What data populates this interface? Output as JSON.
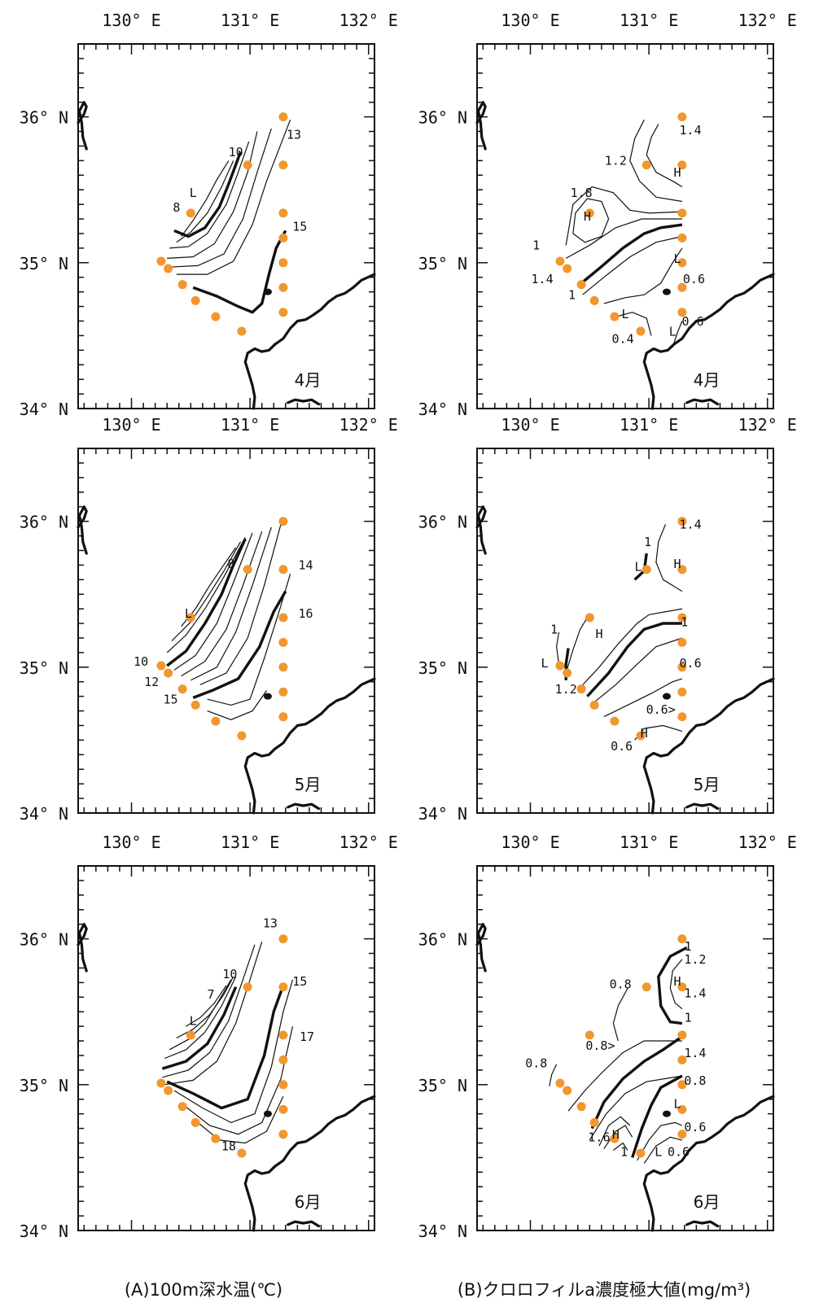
{
  "figure": {
    "lon_labels": [
      "130° E",
      "131° E",
      "132° E"
    ],
    "lat_labels": [
      "36° N",
      "35° N",
      "34° N"
    ],
    "captions": {
      "A": "(A)100m深水温(℃)",
      "B": "(B)クロロフィルa濃度極大値(mg/m³)"
    },
    "colors": {
      "station": "#f2962f",
      "line": "#111111",
      "background": "#ffffff"
    }
  },
  "panels": [
    {
      "id": "A-4",
      "column": "A",
      "row": 0,
      "month": "4月",
      "labels": [
        {
          "text": "10",
          "lon": 130.88,
          "lat": 35.73
        },
        {
          "text": "13",
          "lon": 131.37,
          "lat": 35.85
        },
        {
          "text": "8",
          "lon": 130.38,
          "lat": 35.35
        },
        {
          "text": "L",
          "lon": 130.52,
          "lat": 35.45
        },
        {
          "text": "15",
          "lon": 131.42,
          "lat": 35.22
        }
      ]
    },
    {
      "id": "A-5",
      "column": "A",
      "row": 1,
      "month": "5月",
      "labels": [
        {
          "text": "8",
          "lon": 130.84,
          "lat": 35.68
        },
        {
          "text": "14",
          "lon": 131.47,
          "lat": 35.67
        },
        {
          "text": "L",
          "lon": 130.48,
          "lat": 35.34
        },
        {
          "text": "16",
          "lon": 131.47,
          "lat": 35.34
        },
        {
          "text": "10",
          "lon": 130.08,
          "lat": 35.01
        },
        {
          "text": "12",
          "lon": 130.17,
          "lat": 34.87
        },
        {
          "text": "15",
          "lon": 130.33,
          "lat": 34.75
        }
      ]
    },
    {
      "id": "A-6",
      "column": "A",
      "row": 2,
      "month": "6月",
      "labels": [
        {
          "text": "13",
          "lon": 131.17,
          "lat": 36.08
        },
        {
          "text": "10",
          "lon": 130.83,
          "lat": 35.73
        },
        {
          "text": "15",
          "lon": 131.42,
          "lat": 35.68
        },
        {
          "text": "7",
          "lon": 130.67,
          "lat": 35.59
        },
        {
          "text": "L",
          "lon": 130.52,
          "lat": 35.41
        },
        {
          "text": "17",
          "lon": 131.48,
          "lat": 35.3
        },
        {
          "text": "18",
          "lon": 130.82,
          "lat": 34.55
        }
      ]
    },
    {
      "id": "B-4",
      "column": "B",
      "row": 0,
      "month": "4月",
      "labels": [
        {
          "text": "1.4",
          "lon": 131.35,
          "lat": 35.88
        },
        {
          "text": "1.2",
          "lon": 130.72,
          "lat": 35.67
        },
        {
          "text": "H",
          "lon": 131.24,
          "lat": 35.59
        },
        {
          "text": "1.8",
          "lon": 130.43,
          "lat": 35.45
        },
        {
          "text": "H",
          "lon": 130.48,
          "lat": 35.29
        },
        {
          "text": "1",
          "lon": 130.05,
          "lat": 35.09
        },
        {
          "text": "L",
          "lon": 131.24,
          "lat": 35.0
        },
        {
          "text": "1.4",
          "lon": 130.1,
          "lat": 34.86
        },
        {
          "text": "0.6",
          "lon": 131.38,
          "lat": 34.86
        },
        {
          "text": "1",
          "lon": 130.35,
          "lat": 34.75
        },
        {
          "text": "L",
          "lon": 130.8,
          "lat": 34.62
        },
        {
          "text": "0.6",
          "lon": 131.37,
          "lat": 34.57
        },
        {
          "text": "0.4",
          "lon": 130.78,
          "lat": 34.45
        },
        {
          "text": "L",
          "lon": 131.2,
          "lat": 34.5
        }
      ]
    },
    {
      "id": "B-5",
      "column": "B",
      "row": 1,
      "month": "5月",
      "labels": [
        {
          "text": "1.4",
          "lon": 131.35,
          "lat": 35.95
        },
        {
          "text": "1",
          "lon": 130.99,
          "lat": 35.83
        },
        {
          "text": "L",
          "lon": 130.91,
          "lat": 35.66
        },
        {
          "text": "H",
          "lon": 131.24,
          "lat": 35.68
        },
        {
          "text": "1",
          "lon": 130.2,
          "lat": 35.23
        },
        {
          "text": "H",
          "lon": 130.58,
          "lat": 35.2
        },
        {
          "text": "1",
          "lon": 131.3,
          "lat": 35.28
        },
        {
          "text": "L",
          "lon": 130.12,
          "lat": 35.0
        },
        {
          "text": "0.6",
          "lon": 131.35,
          "lat": 35.0
        },
        {
          "text": "1.2",
          "lon": 130.3,
          "lat": 34.82
        },
        {
          "text": "0.6>",
          "lon": 131.1,
          "lat": 34.68
        },
        {
          "text": "H",
          "lon": 130.96,
          "lat": 34.52
        },
        {
          "text": "0.6",
          "lon": 130.77,
          "lat": 34.43
        }
      ]
    },
    {
      "id": "B-6",
      "column": "B",
      "row": 2,
      "month": "6月",
      "labels": [
        {
          "text": "1",
          "lon": 131.33,
          "lat": 35.92
        },
        {
          "text": "1.2",
          "lon": 131.39,
          "lat": 35.83
        },
        {
          "text": "0.8",
          "lon": 130.76,
          "lat": 35.66
        },
        {
          "text": "H",
          "lon": 131.24,
          "lat": 35.68
        },
        {
          "text": "1.4",
          "lon": 131.39,
          "lat": 35.6
        },
        {
          "text": "1",
          "lon": 131.33,
          "lat": 35.43
        },
        {
          "text": "0.8>",
          "lon": 130.59,
          "lat": 35.24
        },
        {
          "text": "1.4",
          "lon": 131.39,
          "lat": 35.19
        },
        {
          "text": "0.8",
          "lon": 130.05,
          "lat": 35.12
        },
        {
          "text": "0.8",
          "lon": 131.39,
          "lat": 35.0
        },
        {
          "text": "L",
          "lon": 131.24,
          "lat": 34.84
        },
        {
          "text": "0.6",
          "lon": 131.39,
          "lat": 34.68
        },
        {
          "text": "1.6",
          "lon": 130.58,
          "lat": 34.61
        },
        {
          "text": "H",
          "lon": 130.72,
          "lat": 34.63
        },
        {
          "text": "1",
          "lon": 130.79,
          "lat": 34.51
        },
        {
          "text": "L",
          "lon": 131.08,
          "lat": 34.51
        },
        {
          "text": "0.6",
          "lon": 131.25,
          "lat": 34.51
        }
      ]
    }
  ],
  "stations": [
    {
      "lon": 131.28,
      "lat": 36.0
    },
    {
      "lon": 130.98,
      "lat": 35.67
    },
    {
      "lon": 131.28,
      "lat": 35.67
    },
    {
      "lon": 130.5,
      "lat": 35.34
    },
    {
      "lon": 131.28,
      "lat": 35.34
    },
    {
      "lon": 131.28,
      "lat": 35.17
    },
    {
      "lon": 130.25,
      "lat": 35.01
    },
    {
      "lon": 130.31,
      "lat": 34.96
    },
    {
      "lon": 131.28,
      "lat": 35.0
    },
    {
      "lon": 130.43,
      "lat": 34.85
    },
    {
      "lon": 130.54,
      "lat": 34.74
    },
    {
      "lon": 131.28,
      "lat": 34.83
    },
    {
      "lon": 130.71,
      "lat": 34.63
    },
    {
      "lon": 130.93,
      "lat": 34.53
    },
    {
      "lon": 131.28,
      "lat": 34.66
    }
  ]
}
